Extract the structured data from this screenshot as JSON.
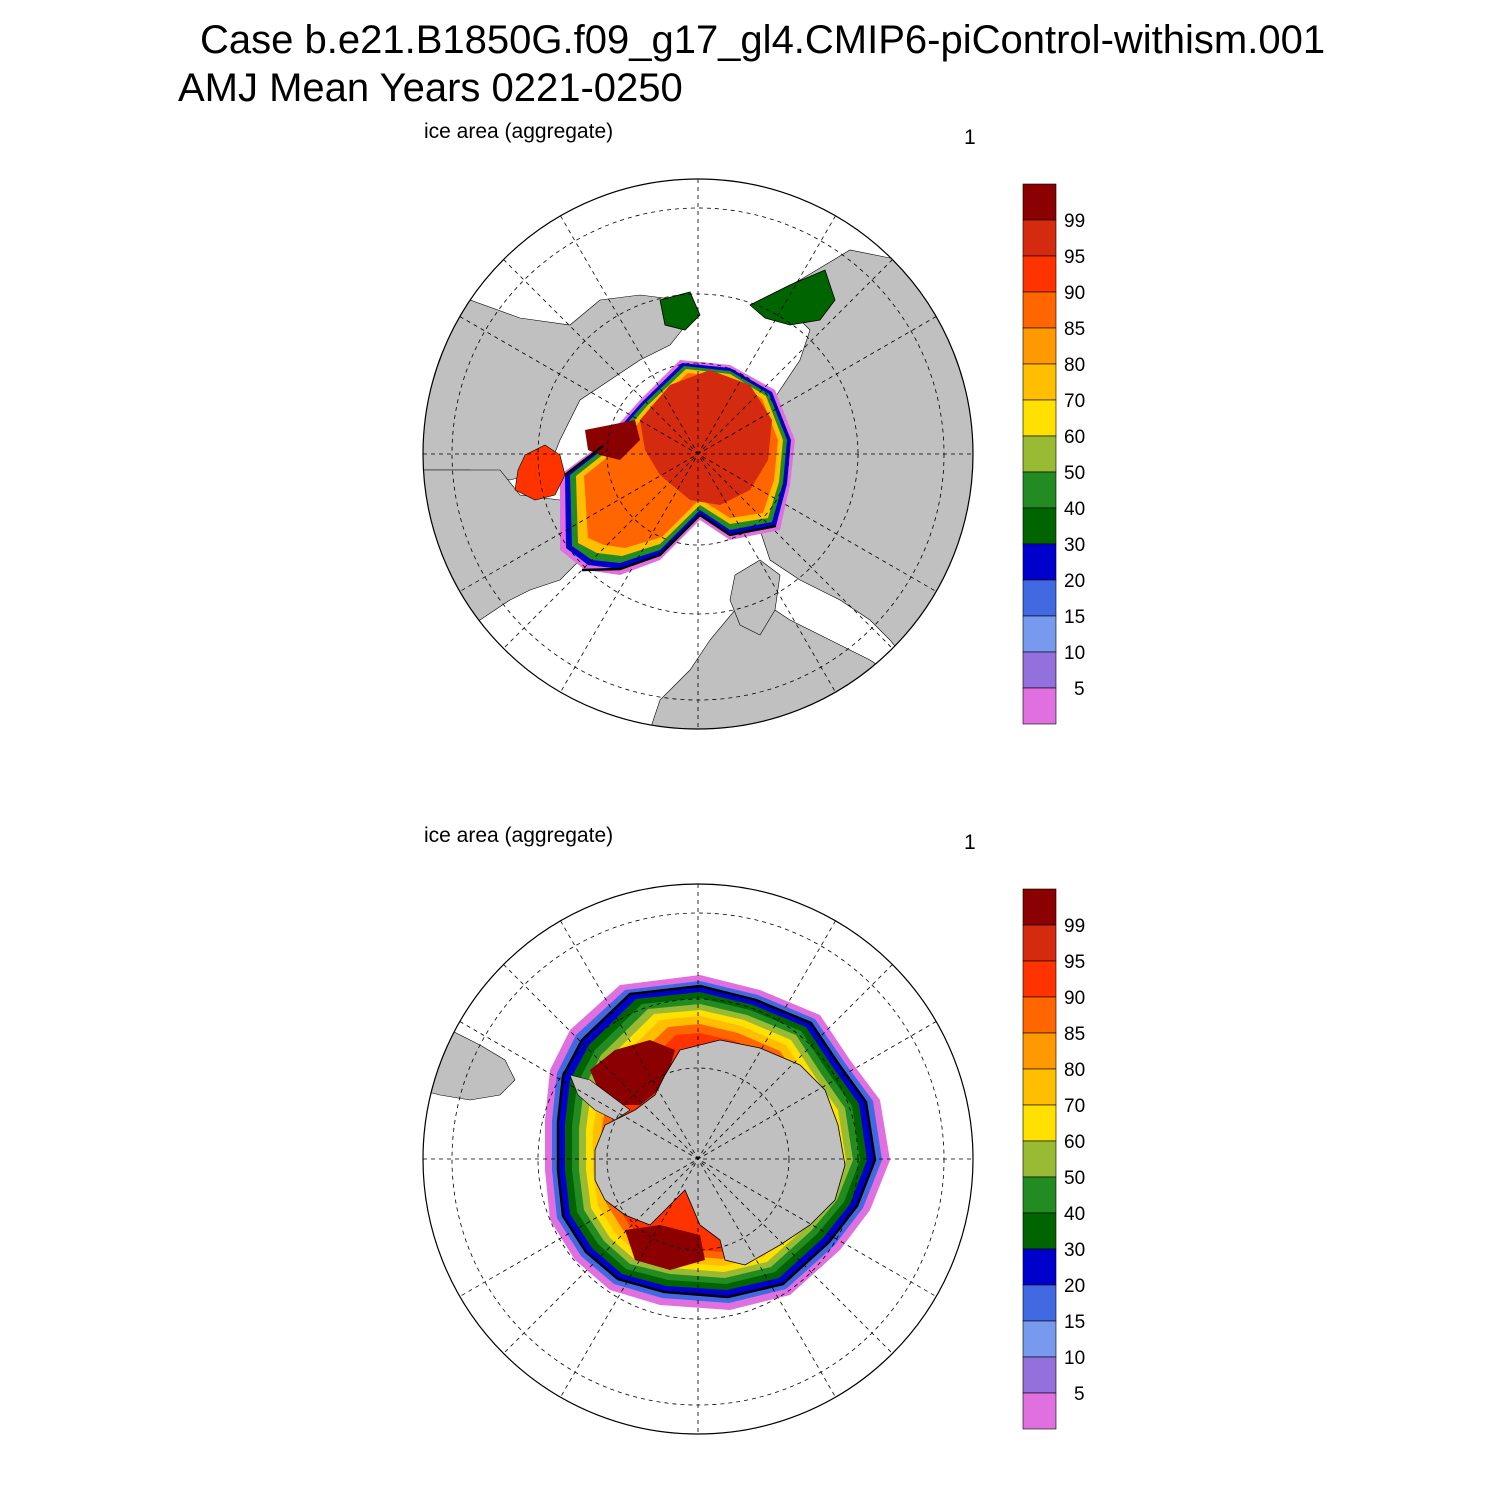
{
  "header": {
    "case_line": "Case b.e21.B1850G.f09_g17_gl4.CMIP6-piControl-withism.001",
    "period_line": "AMJ Mean   Years 0221-0250"
  },
  "panels": [
    {
      "id": "north",
      "label": "ice area  (aggregate)",
      "number": "1"
    },
    {
      "id": "south",
      "label": "ice area  (aggregate)",
      "number": "1"
    }
  ],
  "colorbar": {
    "labels": [
      "99",
      "95",
      "90",
      "85",
      "80",
      "70",
      "60",
      "50",
      "40",
      "30",
      "20",
      "15",
      "10",
      "5"
    ],
    "colors": [
      "#8b0000",
      "#d42a0f",
      "#ff3300",
      "#ff6600",
      "#ff9900",
      "#ffbf00",
      "#ffe000",
      "#99bb33",
      "#228b22",
      "#006400",
      "#0000cd",
      "#4169e1",
      "#7799ee",
      "#9370db",
      "#e070e0"
    ]
  },
  "colors": {
    "land": "#c0c0c0",
    "ocean": "#ffffff",
    "ice_core": "#d42a0f"
  }
}
